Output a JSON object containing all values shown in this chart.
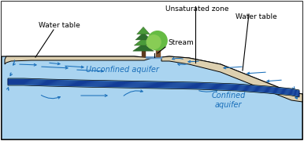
{
  "fig_width": 3.86,
  "fig_height": 1.8,
  "dpi": 100,
  "bg_outer": "#c8c0b0",
  "bg_white": "#ffffff",
  "aquifer_blue": "#aad4f0",
  "confine_blue": "#5599cc",
  "beige": "#ddd0b0",
  "black": "#000000",
  "arrow_color": "#1a6fba",
  "label_color": "#4477aa",
  "text_black": "#222222",
  "ground_gray": "#b8b0a0",
  "labels": {
    "water_table_left": "Water table",
    "water_table_right": "Water table",
    "unsaturated_zone": "Unsaturated zone",
    "stream": "Stream",
    "unconfined": "Unconfined aquifer",
    "confined": "Confined\naquifer"
  },
  "fs": 6.5,
  "fs_aquifer": 7.0
}
